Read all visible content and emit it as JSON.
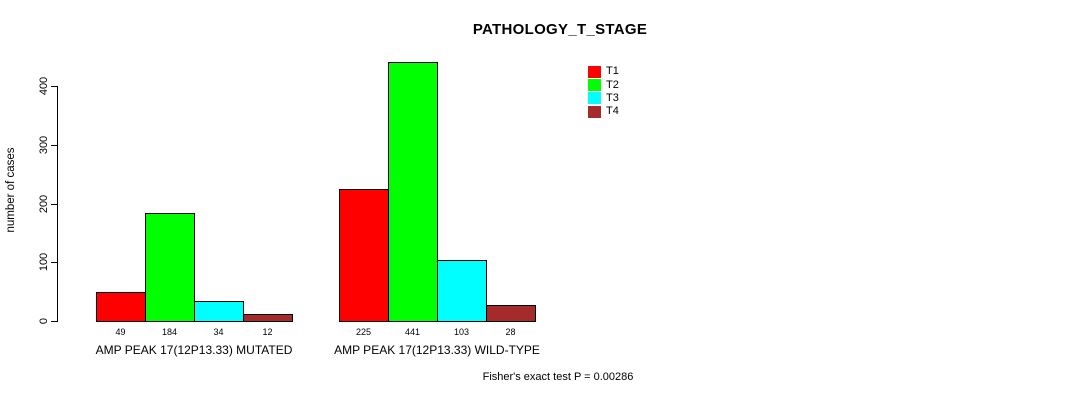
{
  "chart_data": {
    "type": "bar",
    "title": "PATHOLOGY_T_STAGE",
    "ylabel": "number of cases",
    "xlabel": "",
    "yticks": [
      0,
      100,
      200,
      300,
      400
    ],
    "ylim": [
      0,
      450
    ],
    "grid": false,
    "legend_position": "top-right",
    "categories": [
      "AMP PEAK 17(12P13.33) MUTATED",
      "AMP PEAK 17(12P13.33) WILD-TYPE"
    ],
    "series": [
      {
        "name": "T1",
        "color": "#FF0000",
        "values": [
          49,
          225
        ]
      },
      {
        "name": "T2",
        "color": "#00FF00",
        "values": [
          184,
          441
        ]
      },
      {
        "name": "T3",
        "color": "#00FFFF",
        "values": [
          34,
          103
        ]
      },
      {
        "name": "T4",
        "color": "#A52A2A",
        "values": [
          12,
          28
        ]
      }
    ],
    "bar_labels": [
      [
        "49",
        "184",
        "34",
        "12"
      ],
      [
        "225",
        "441",
        "103",
        "28"
      ]
    ],
    "annotation": "Fisher's exact test P = 0.00286"
  }
}
